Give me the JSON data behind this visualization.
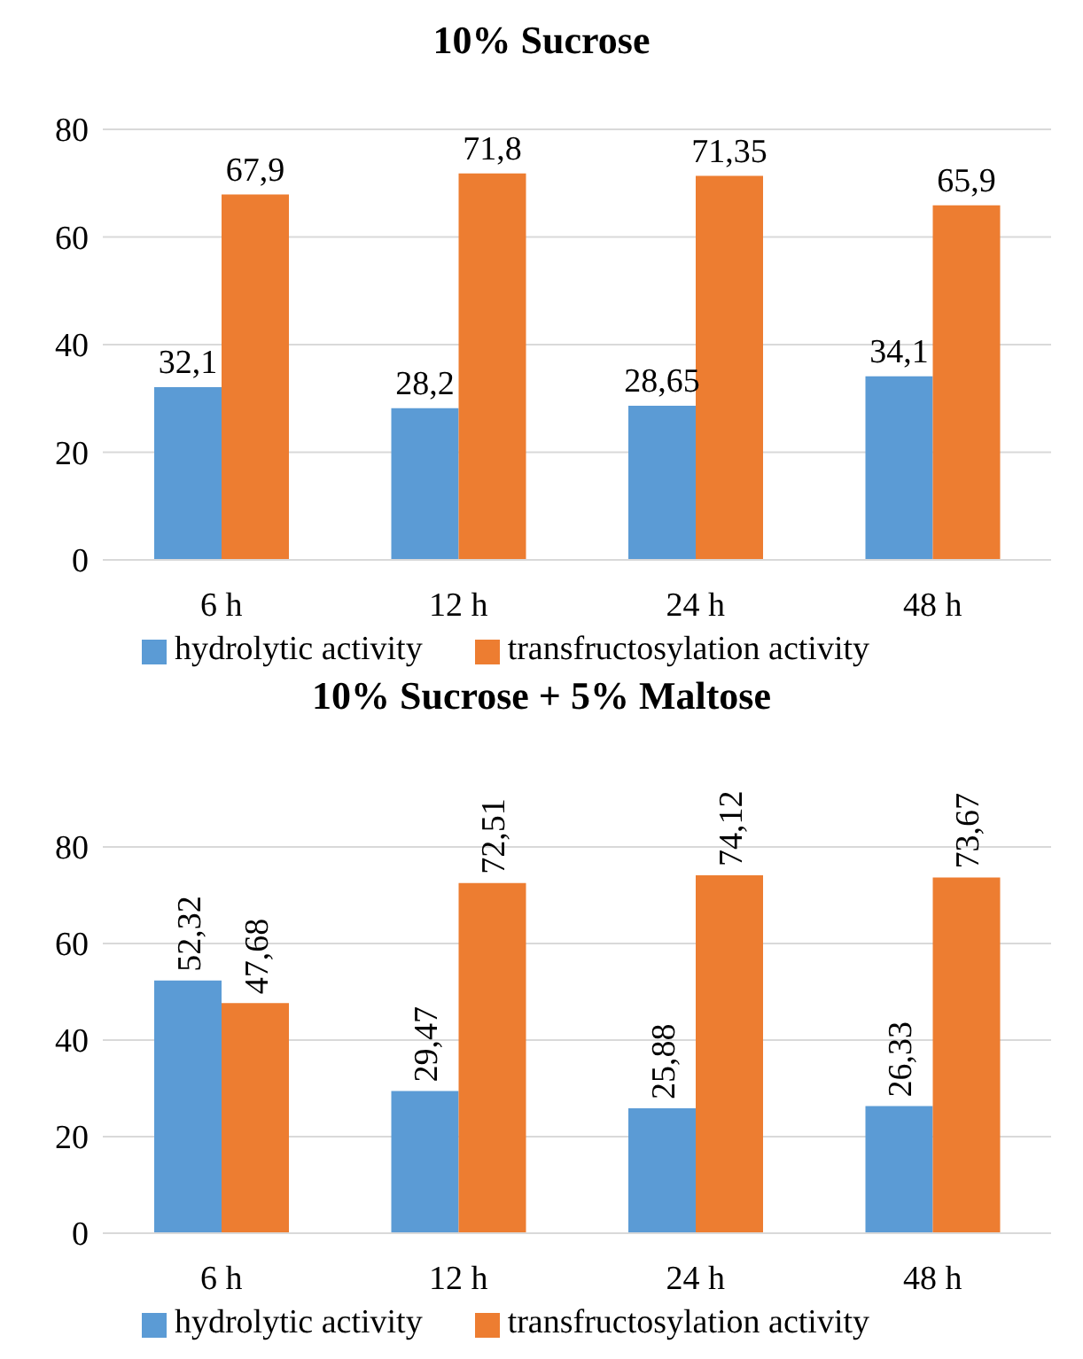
{
  "chart_data": [
    {
      "type": "bar",
      "title": "10% Sucrose",
      "categories": [
        "6 h",
        "12 h",
        "24 h",
        "48 h"
      ],
      "series": [
        {
          "name": "hydrolytic activity",
          "color": "#5b9bd5",
          "values": [
            32.1,
            28.2,
            28.65,
            34.1
          ],
          "value_labels": [
            "32,1",
            "28,2",
            "28,65",
            "34,1"
          ]
        },
        {
          "name": "transfructosylation activity",
          "color": "#ed7d31",
          "values": [
            67.9,
            71.8,
            71.35,
            65.9
          ],
          "value_labels": [
            "67,9",
            "71,8",
            "71,35",
            "65,9"
          ]
        }
      ],
      "ylim": [
        0,
        80
      ],
      "yticks": [
        0,
        20,
        40,
        60,
        80
      ],
      "grid": "y",
      "legend": "bottom"
    },
    {
      "type": "bar",
      "title": "10% Sucrose + 5% Maltose",
      "categories": [
        "6 h",
        "12 h",
        "24 h",
        "48 h"
      ],
      "series": [
        {
          "name": "hydrolytic activity",
          "color": "#5b9bd5",
          "values": [
            52.32,
            29.47,
            25.88,
            26.33
          ],
          "value_labels": [
            "52,32",
            "29,47",
            "25,88",
            "26,33"
          ]
        },
        {
          "name": "transfructosylation activity",
          "color": "#ed7d31",
          "values": [
            47.68,
            72.51,
            74.12,
            73.67
          ],
          "value_labels": [
            "47,68",
            "72,51",
            "74,12",
            "73,67"
          ]
        }
      ],
      "ylim": [
        0,
        80
      ],
      "yticks": [
        0,
        20,
        40,
        60,
        80
      ],
      "grid": "y",
      "legend": "bottom"
    }
  ]
}
